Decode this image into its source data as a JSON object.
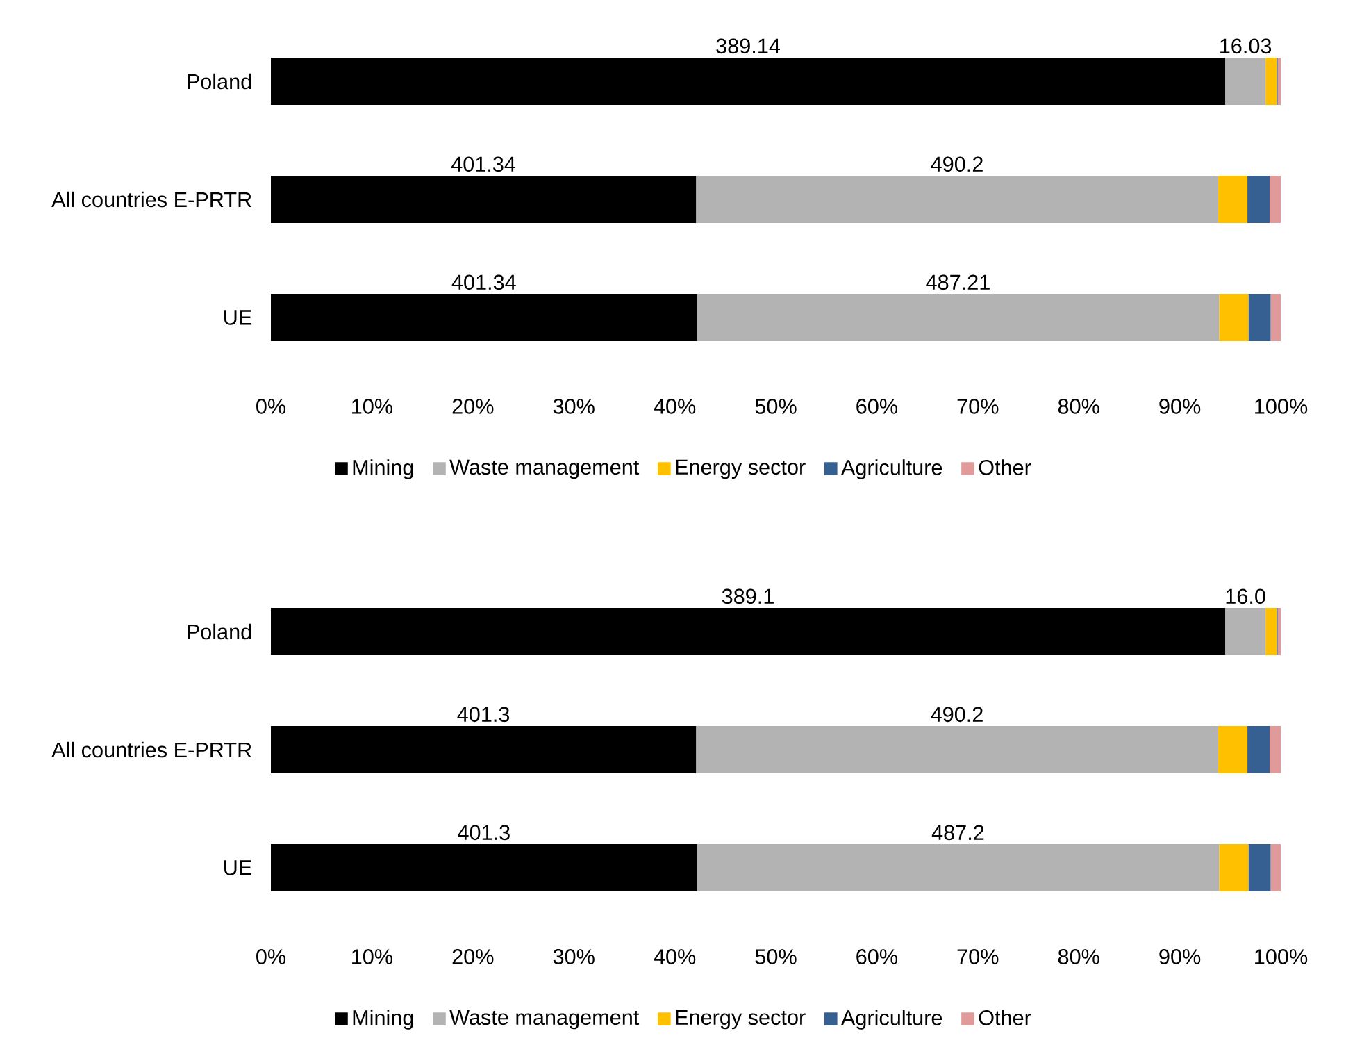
{
  "chart_data": [
    {
      "type": "bar",
      "orientation": "horizontal",
      "stacked": true,
      "categories": [
        "Poland",
        "All countries E-PRTR",
        "UE"
      ],
      "series": [
        {
          "name": "Mining",
          "color": "#000000",
          "values": [
            94.5,
            42.1,
            42.2
          ]
        },
        {
          "name": "Waste management",
          "color": "#b3b3b3",
          "values": [
            4.0,
            51.7,
            51.7
          ]
        },
        {
          "name": "Energy sector",
          "color": "#ffc000",
          "values": [
            1.1,
            2.9,
            2.9
          ]
        },
        {
          "name": "Agriculture",
          "color": "#376092",
          "values": [
            0.1,
            2.2,
            2.2
          ]
        },
        {
          "name": "Other",
          "color": "#e09a9a",
          "values": [
            0.3,
            1.1,
            1.0
          ]
        }
      ],
      "annotations": [
        "389.14",
        "16.03",
        "401.34",
        "490.2",
        "401.34",
        "487.21"
      ],
      "xlim": [
        0,
        100
      ],
      "xticks": [
        {
          "value": 0,
          "label": "0%"
        },
        {
          "value": 10,
          "label": "10%"
        },
        {
          "value": 20,
          "label": "20%"
        },
        {
          "value": 30,
          "label": "30%"
        },
        {
          "value": 40,
          "label": "40%"
        },
        {
          "value": 50,
          "label": "50%"
        },
        {
          "value": 60,
          "label": "60%"
        },
        {
          "value": 70,
          "label": "70%"
        },
        {
          "value": 80,
          "label": "80%"
        },
        {
          "value": 90,
          "label": "90%"
        },
        {
          "value": 100,
          "label": "100%"
        }
      ],
      "legend": "bottom"
    },
    {
      "type": "bar",
      "orientation": "horizontal",
      "stacked": true,
      "categories": [
        "Poland",
        "All countries E-PRTR",
        "UE"
      ],
      "series": [
        {
          "name": "Mining",
          "color": "#000000",
          "values": [
            94.5,
            42.1,
            42.2
          ]
        },
        {
          "name": "Waste management",
          "color": "#b3b3b3",
          "values": [
            4.0,
            51.7,
            51.7
          ]
        },
        {
          "name": "Energy sector",
          "color": "#ffc000",
          "values": [
            1.1,
            2.9,
            2.9
          ]
        },
        {
          "name": "Agriculture",
          "color": "#376092",
          "values": [
            0.1,
            2.2,
            2.2
          ]
        },
        {
          "name": "Other",
          "color": "#e09a9a",
          "values": [
            0.3,
            1.1,
            1.0
          ]
        }
      ],
      "annotations": [
        "389.1",
        "16.0",
        "401.3",
        "490.2",
        "401.3",
        "487.2"
      ],
      "xlim": [
        0,
        100
      ],
      "xticks": [
        {
          "value": 0,
          "label": "0%"
        },
        {
          "value": 10,
          "label": "10%"
        },
        {
          "value": 20,
          "label": "20%"
        },
        {
          "value": 30,
          "label": "30%"
        },
        {
          "value": 40,
          "label": "40%"
        },
        {
          "value": 50,
          "label": "50%"
        },
        {
          "value": 60,
          "label": "60%"
        },
        {
          "value": 70,
          "label": "70%"
        },
        {
          "value": 80,
          "label": "80%"
        },
        {
          "value": 90,
          "label": "90%"
        },
        {
          "value": 100,
          "label": "100%"
        }
      ],
      "legend": "bottom"
    }
  ]
}
